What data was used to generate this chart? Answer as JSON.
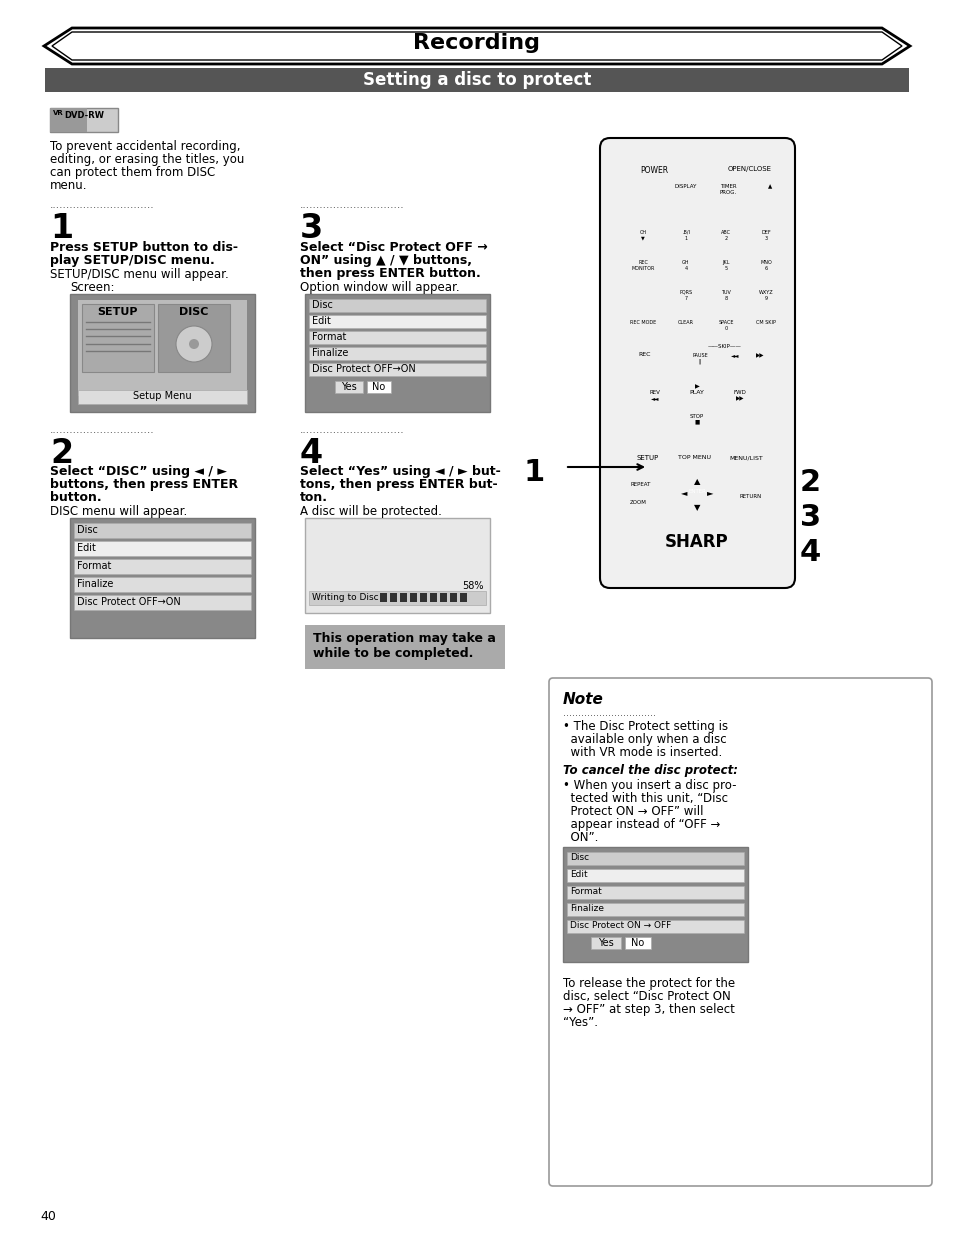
{
  "title": "Recording",
  "subtitle": "Setting a disc to protect",
  "page_number": "40",
  "bg_color": "#ffffff",
  "subtitle_bg": "#555555",
  "step1_dots": "...............................",
  "step2_dots": "...............................",
  "step3_dots": "...............................",
  "step4_dots": "...............................",
  "step1_num": "1",
  "step2_num": "2",
  "step3_num": "3",
  "step4_num": "4",
  "step1_head1": "Press SETUP button to dis-",
  "step1_head2": "play SETUP/DISC menu.",
  "step1_body": "SETUP/DISC menu will appear.",
  "step1_screen": "Screen:",
  "step2_head1": "Select “DISC” using ◄ / ►",
  "step2_head2": "buttons, then press ENTER",
  "step2_head3": "button.",
  "step2_body": "DISC menu will appear.",
  "step3_head1": "Select “Disc Protect OFF →",
  "step3_head2": "ON” using ▲ / ▼ buttons,",
  "step3_head3": "then press ENTER button.",
  "step3_body": "Option window will appear.",
  "step4_head1": "Select “Yes” using ◄ / ► but-",
  "step4_head2": "tons, then press ENTER but-",
  "step4_head3": "ton.",
  "step4_body": "A disc will be protected.",
  "warn_line1": "This operation may take a",
  "warn_line2": "while to be completed.",
  "note_title": "Note",
  "note_dots": "...............................",
  "note_body1": "• The Disc Protect setting is",
  "note_body2": "  available only when a disc",
  "note_body3": "  with VR mode is inserted.",
  "note_italic1": "To cancel the disc protect:",
  "note_body4": "• When you insert a disc pro-",
  "note_body5": "  tected with this unit, “Disc",
  "note_body6": "  Protect ON → OFF” will",
  "note_body7": "  appear instead of “OFF →",
  "note_body8": "  ON”.",
  "note_bottom1": "To release the protect for the",
  "note_bottom2": "disc, select “Disc Protect ON",
  "note_bottom3": "→ OFF” at step 3, then select",
  "note_bottom4": "“Yes”.",
  "intro_line1": "To prevent accidental recording,",
  "intro_line2": "editing, or erasing the titles, you",
  "intro_line3": "can protect them from DISC",
  "intro_line4": "menu.",
  "menu_items_disc": [
    "Disc",
    "Edit",
    "Format",
    "Finalize",
    "Disc Protect OFF→ON"
  ],
  "menu_items_note": [
    "Disc",
    "Edit",
    "Format",
    "Finalize",
    "Disc Protect ON → OFF"
  ],
  "setup_label": "Setup Menu",
  "writing_label": "Writing to Disc",
  "percent_label": "58%"
}
